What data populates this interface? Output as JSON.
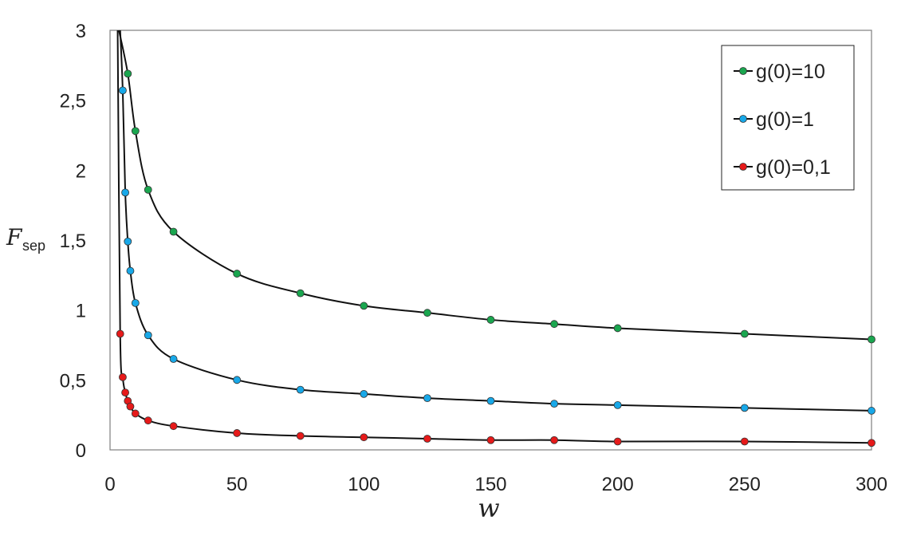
{
  "chart_data": {
    "type": "line",
    "xlabel": "w",
    "ylabel_main": "F",
    "ylabel_sub": "sep",
    "xlim": [
      0,
      300
    ],
    "ylim": [
      0,
      3
    ],
    "x_ticks": [
      "0",
      "50",
      "100",
      "150",
      "200",
      "250",
      "300"
    ],
    "y_ticks": [
      "0",
      "0,5",
      "1",
      "1,5",
      "2",
      "2,5",
      "3"
    ],
    "grid": false,
    "legend_position": "top-right",
    "series": [
      {
        "name": "g(0)=10",
        "color": "#1aa64f",
        "points": [
          [
            7,
            2.69
          ],
          [
            10,
            2.28
          ],
          [
            15,
            1.86
          ],
          [
            25,
            1.56
          ],
          [
            50,
            1.26
          ],
          [
            75,
            1.12
          ],
          [
            100,
            1.03
          ],
          [
            125,
            0.98
          ],
          [
            150,
            0.93
          ],
          [
            175,
            0.9
          ],
          [
            200,
            0.87
          ],
          [
            250,
            0.83
          ],
          [
            300,
            0.79
          ]
        ],
        "curve_start": [
          3.5,
          3.0
        ]
      },
      {
        "name": "g(0)=1",
        "color": "#18a8e8",
        "points": [
          [
            5,
            2.57
          ],
          [
            6,
            1.84
          ],
          [
            7,
            1.49
          ],
          [
            8,
            1.28
          ],
          [
            10,
            1.05
          ],
          [
            15,
            0.82
          ],
          [
            25,
            0.65
          ],
          [
            50,
            0.5
          ],
          [
            75,
            0.43
          ],
          [
            100,
            0.4
          ],
          [
            125,
            0.37
          ],
          [
            150,
            0.35
          ],
          [
            175,
            0.33
          ],
          [
            200,
            0.32
          ],
          [
            250,
            0.3
          ],
          [
            300,
            0.28
          ]
        ],
        "curve_start": [
          4.0,
          3.0
        ]
      },
      {
        "name": "g(0)=0,1",
        "color": "#e61a1a",
        "points": [
          [
            4,
            0.83
          ],
          [
            5,
            0.52
          ],
          [
            6,
            0.41
          ],
          [
            7,
            0.35
          ],
          [
            8,
            0.31
          ],
          [
            10,
            0.26
          ],
          [
            15,
            0.21
          ],
          [
            25,
            0.17
          ],
          [
            50,
            0.12
          ],
          [
            75,
            0.1
          ],
          [
            100,
            0.09
          ],
          [
            125,
            0.08
          ],
          [
            150,
            0.07
          ],
          [
            175,
            0.07
          ],
          [
            200,
            0.06
          ],
          [
            250,
            0.06
          ],
          [
            300,
            0.05
          ]
        ],
        "curve_start": [
          3.0,
          3.0
        ]
      }
    ]
  }
}
